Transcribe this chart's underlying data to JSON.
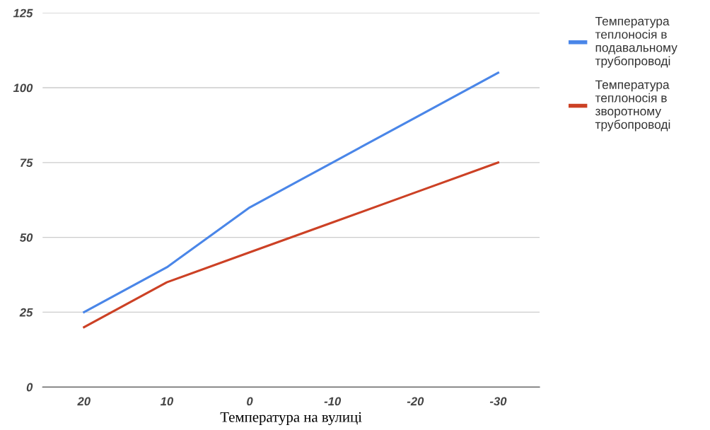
{
  "chart_data": {
    "type": "line",
    "xlabel": "Температура на вулиці",
    "categories": [
      "20",
      "10",
      "0",
      "-10",
      "-20",
      "-30"
    ],
    "series": [
      {
        "name": "Температура теплоносія в подавальному трубопроводі",
        "color": "#4a86e8",
        "values": [
          25,
          40,
          60,
          75,
          90,
          105
        ]
      },
      {
        "name": "Температура теплоносія в зворотному трубопроводі",
        "color": "#cc4125",
        "values": [
          20,
          35,
          45,
          55,
          65,
          75
        ]
      }
    ],
    "ylim": [
      0,
      125
    ],
    "yticks": [
      0,
      25,
      50,
      75,
      100,
      125
    ],
    "grid": "y",
    "legend": "top right",
    "marker": "none",
    "line_style": "solid"
  }
}
